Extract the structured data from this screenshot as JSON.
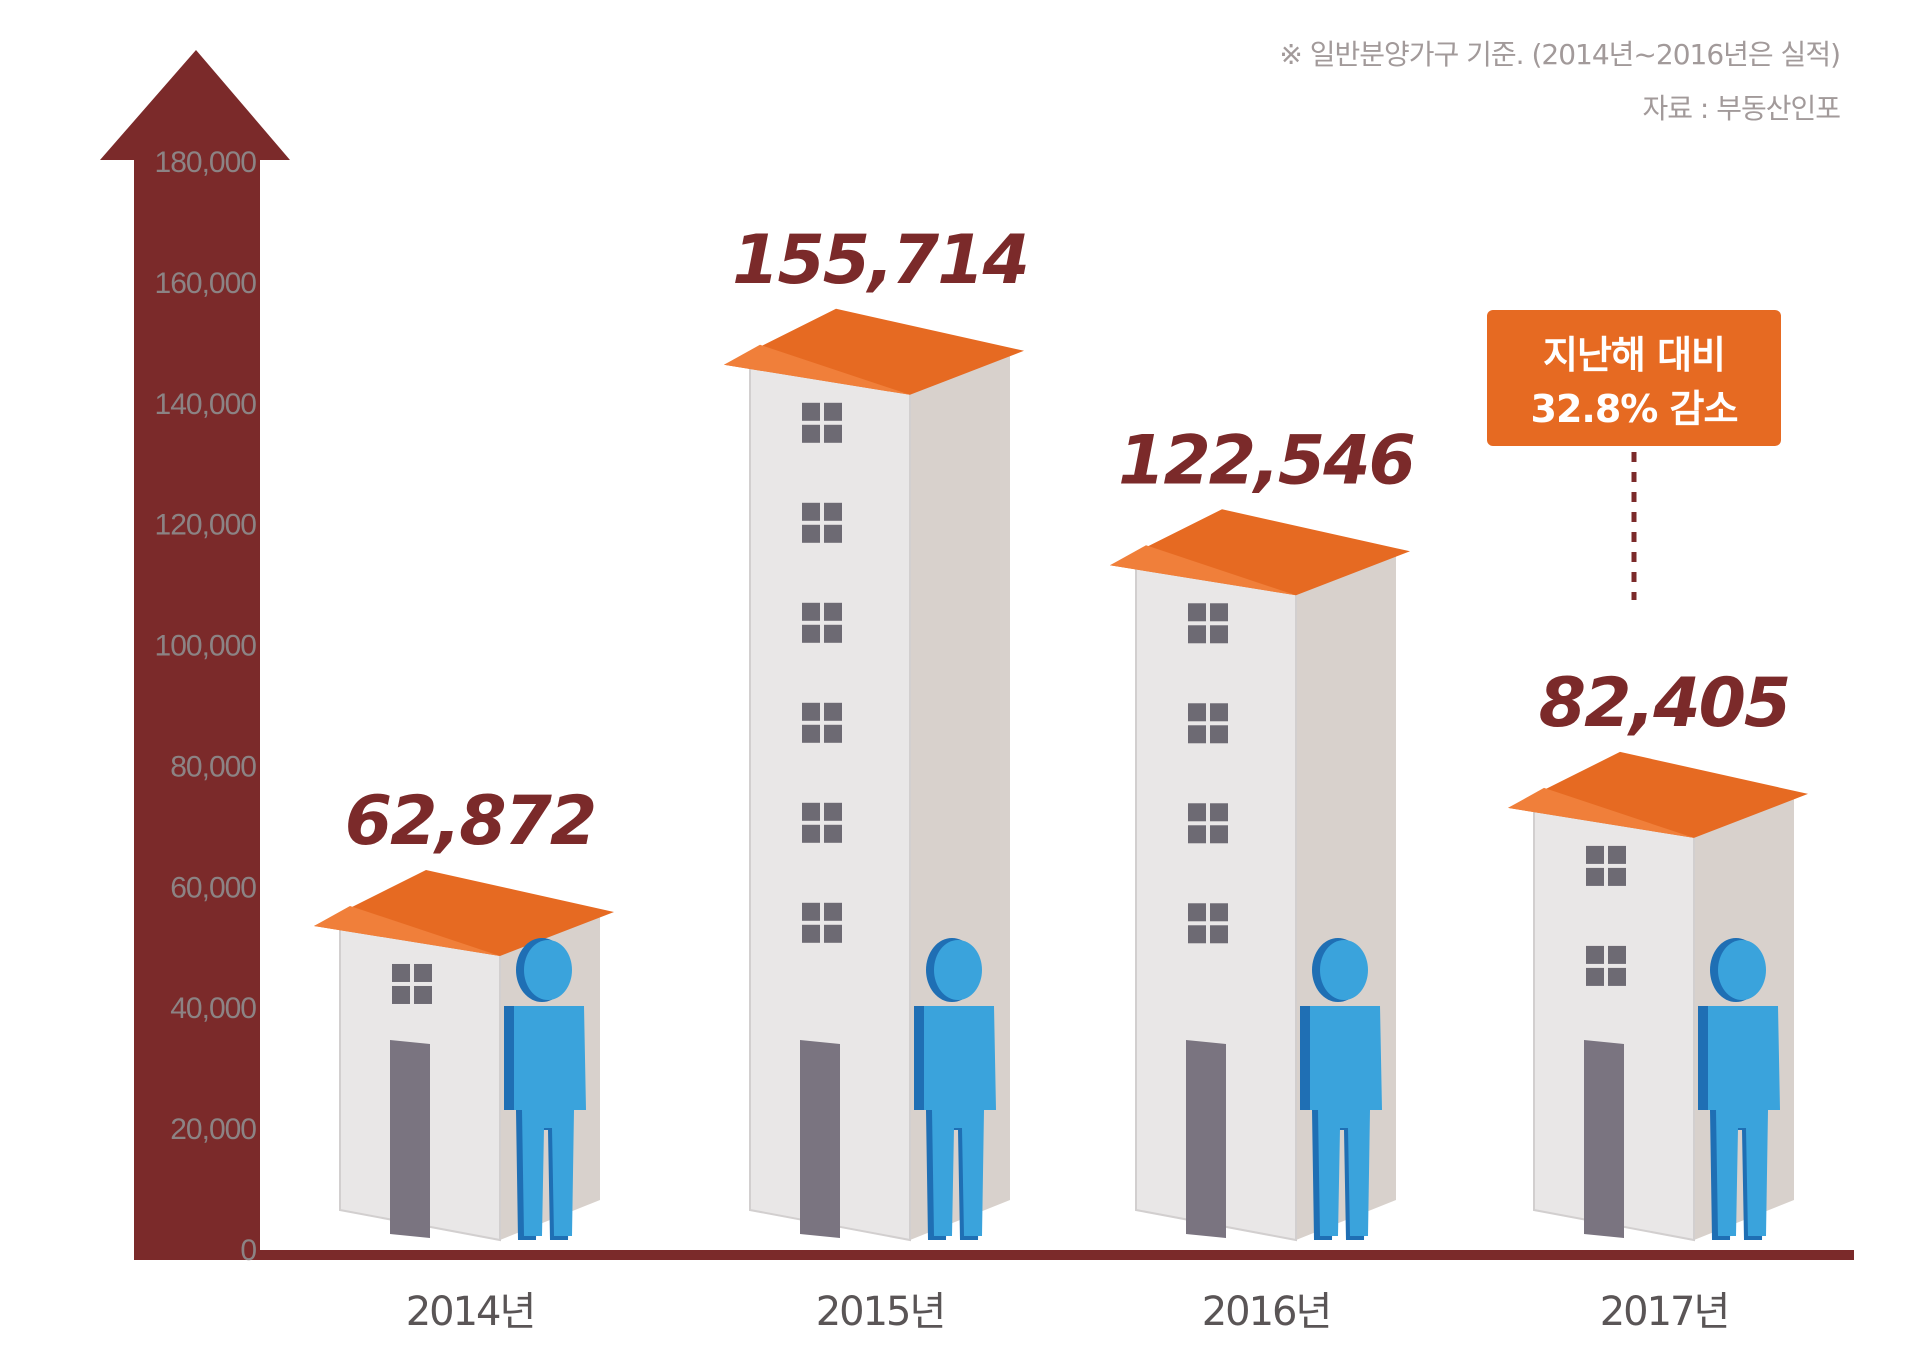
{
  "colors": {
    "axis": "#7b2a2a",
    "roof": "#e66a22",
    "wall_front": "#e9e7e7",
    "wall_side": "#d8d1cc",
    "window": "#6d6a73",
    "door": "#7a7480",
    "person": "#3aa3dc",
    "person_dark": "#1f6fb4",
    "callout": "#e66a22"
  },
  "notes": {
    "basis": "※ 일반분양가구 기준. (2014년~2016년은 실적)",
    "source": "자료 : 부동산인포"
  },
  "callout": {
    "line1": "지난해 대비",
    "line2": "32.8% 감소"
  },
  "chart_data": {
    "type": "bar",
    "categories": [
      "2014년",
      "2015년",
      "2016년",
      "2017년"
    ],
    "values": [
      62872,
      155714,
      122546,
      82405
    ],
    "value_labels": [
      "62,872",
      "155,714",
      "122,546",
      "82,405"
    ],
    "ylim": [
      0,
      180000
    ],
    "yticks": [
      0,
      20000,
      40000,
      60000,
      80000,
      100000,
      120000,
      140000,
      160000,
      180000
    ],
    "ytick_labels": [
      "0",
      "20,000",
      "40,000",
      "60,000",
      "80,000",
      "100,000",
      "120,000",
      "140,000",
      "160,000",
      "180,000"
    ],
    "grid": false,
    "icons": [
      "house-building-icon",
      "person-icon"
    ]
  }
}
